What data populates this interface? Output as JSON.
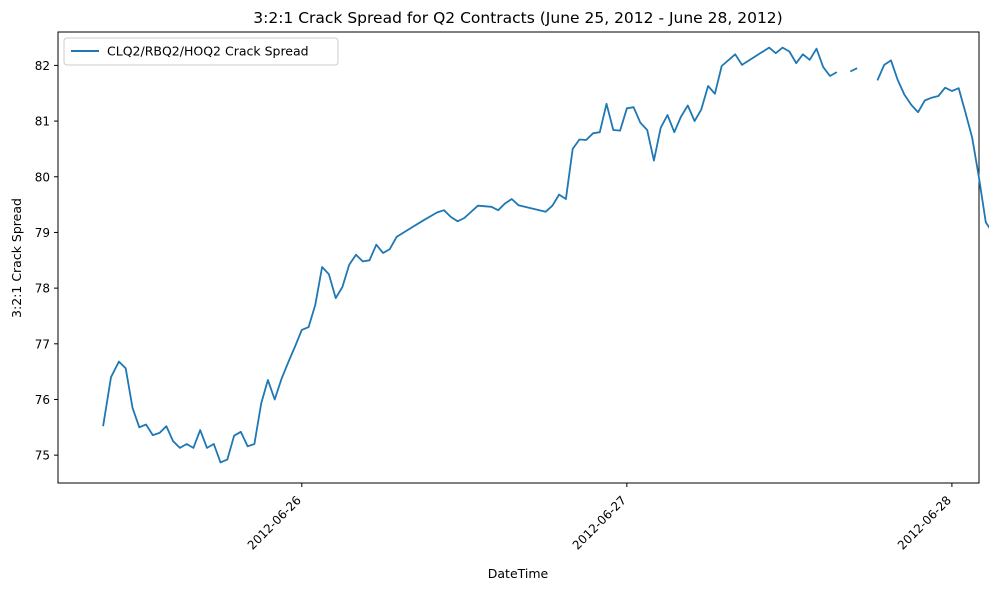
{
  "chart_data": {
    "type": "line",
    "title": "3:2:1 Crack Spread for Q2 Contracts (June 25, 2012 - June 28, 2012)",
    "xlabel": "DateTime",
    "ylabel": "3:2:1 Crack Spread",
    "xlim": [
      "2012-06-25T06:00",
      "2012-06-28T02:00"
    ],
    "ylim": [
      74.5,
      82.6
    ],
    "xticks": [
      "2012-06-26",
      "2012-06-27",
      "2012-06-28"
    ],
    "yticks": [
      75,
      76,
      77,
      78,
      79,
      80,
      81,
      82
    ],
    "grid": false,
    "legend_position": "top-left",
    "series": [
      {
        "name": "CLQ2/RBQ2/HOQ2 Crack Spread",
        "color": "#1f77b4",
        "points": [
          [
            "2012-06-25T09:20",
            75.52
          ],
          [
            "2012-06-25T09:55",
            76.4
          ],
          [
            "2012-06-25T10:30",
            76.68
          ],
          [
            "2012-06-25T11:00",
            76.56
          ],
          [
            "2012-06-25T11:30",
            75.85
          ],
          [
            "2012-06-25T12:00",
            75.5
          ],
          [
            "2012-06-25T12:30",
            75.55
          ],
          [
            "2012-06-25T13:00",
            75.36
          ],
          [
            "2012-06-25T13:30",
            75.4
          ],
          [
            "2012-06-25T14:00",
            75.52
          ],
          [
            "2012-06-25T14:30",
            75.25
          ],
          [
            "2012-06-25T15:00",
            75.13
          ],
          [
            "2012-06-25T15:30",
            75.2
          ],
          [
            "2012-06-25T16:00",
            75.13
          ],
          [
            "2012-06-25T16:30",
            75.45
          ],
          [
            "2012-06-25T17:00",
            75.13
          ],
          [
            "2012-06-25T17:30",
            75.2
          ],
          [
            "2012-06-25T18:00",
            74.87
          ],
          [
            "2012-06-25T18:30",
            74.92
          ],
          [
            "2012-06-25T19:00",
            75.35
          ],
          [
            "2012-06-25T19:30",
            75.42
          ],
          [
            "2012-06-25T20:00",
            75.16
          ],
          [
            "2012-06-25T20:30",
            75.2
          ],
          [
            "2012-06-25T21:00",
            75.93
          ],
          [
            "2012-06-25T21:30",
            76.35
          ],
          [
            "2012-06-25T22:00",
            76.0
          ],
          [
            "2012-06-25T22:30",
            76.37
          ],
          [
            "2012-06-25T23:00",
            76.67
          ],
          [
            "2012-06-25T23:30",
            76.95
          ],
          [
            "2012-06-26T00:00",
            77.25
          ],
          [
            "2012-06-26T00:30",
            77.3
          ],
          [
            "2012-06-26T01:00",
            77.7
          ],
          [
            "2012-06-26T01:30",
            78.38
          ],
          [
            "2012-06-26T02:00",
            78.25
          ],
          [
            "2012-06-26T02:30",
            77.82
          ],
          [
            "2012-06-26T03:00",
            78.02
          ],
          [
            "2012-06-26T03:30",
            78.42
          ],
          [
            "2012-06-26T04:00",
            78.6
          ],
          [
            "2012-06-26T04:30",
            78.48
          ],
          [
            "2012-06-26T05:00",
            78.5
          ],
          [
            "2012-06-26T05:30",
            78.78
          ],
          [
            "2012-06-26T06:00",
            78.63
          ],
          [
            "2012-06-26T06:30",
            78.7
          ],
          [
            "2012-06-26T07:00",
            78.92
          ],
          [
            "2012-06-26T08:00",
            79.07
          ],
          [
            "2012-06-26T09:00",
            79.22
          ],
          [
            "2012-06-26T10:00",
            79.36
          ],
          [
            "2012-06-26T10:30",
            79.4
          ],
          [
            "2012-06-26T11:00",
            79.28
          ],
          [
            "2012-06-26T11:30",
            79.2
          ],
          [
            "2012-06-26T12:00",
            79.26
          ],
          [
            "2012-06-26T13:00",
            79.48
          ],
          [
            "2012-06-26T14:00",
            79.46
          ],
          [
            "2012-06-26T14:30",
            79.4
          ],
          [
            "2012-06-26T15:00",
            79.52
          ],
          [
            "2012-06-26T15:30",
            79.6
          ],
          [
            "2012-06-26T16:00",
            79.49
          ],
          [
            "2012-06-26T18:00",
            79.37
          ],
          [
            "2012-06-26T18:30",
            79.48
          ],
          [
            "2012-06-26T19:00",
            79.68
          ],
          [
            "2012-06-26T19:30",
            79.6
          ],
          [
            "2012-06-26T20:00",
            80.5
          ],
          [
            "2012-06-26T20:30",
            80.67
          ],
          [
            "2012-06-26T21:00",
            80.66
          ],
          [
            "2012-06-26T21:30",
            80.78
          ],
          [
            "2012-06-26T22:00",
            80.8
          ],
          [
            "2012-06-26T22:30",
            81.31
          ],
          [
            "2012-06-26T23:00",
            80.84
          ],
          [
            "2012-06-26T23:30",
            80.83
          ],
          [
            "2012-06-27T00:00",
            81.23
          ],
          [
            "2012-06-27T00:30",
            81.25
          ],
          [
            "2012-06-27T01:00",
            80.97
          ],
          [
            "2012-06-27T01:30",
            80.84
          ],
          [
            "2012-06-27T02:00",
            80.29
          ],
          [
            "2012-06-27T02:30",
            80.88
          ],
          [
            "2012-06-27T03:00",
            81.11
          ],
          [
            "2012-06-27T03:30",
            80.8
          ],
          [
            "2012-06-27T04:00",
            81.08
          ],
          [
            "2012-06-27T04:30",
            81.28
          ],
          [
            "2012-06-27T05:00",
            81.0
          ],
          [
            "2012-06-27T05:30",
            81.21
          ],
          [
            "2012-06-27T06:00",
            81.63
          ],
          [
            "2012-06-27T06:30",
            81.49
          ],
          [
            "2012-06-27T07:00",
            81.99
          ],
          [
            "2012-06-27T08:00",
            82.2
          ],
          [
            "2012-06-27T08:30",
            82.01
          ],
          [
            "2012-06-27T10:30",
            82.32
          ],
          [
            "2012-06-27T11:00",
            82.22
          ],
          [
            "2012-06-27T11:30",
            82.32
          ],
          [
            "2012-06-27T12:00",
            82.25
          ],
          [
            "2012-06-27T12:30",
            82.04
          ],
          [
            "2012-06-27T13:00",
            82.2
          ],
          [
            "2012-06-27T13:30",
            82.1
          ],
          [
            "2012-06-27T14:00",
            82.3
          ],
          [
            "2012-06-27T14:30",
            81.97
          ],
          [
            "2012-06-27T15:00",
            81.81
          ],
          [
            "2012-06-27T15:30",
            81.88
          ],
          null,
          [
            "2012-06-27T16:30",
            81.89
          ],
          [
            "2012-06-27T17:00",
            81.95
          ],
          null,
          [
            "2012-06-27T18:30",
            81.73
          ],
          [
            "2012-06-27T19:00",
            82.01
          ],
          [
            "2012-06-27T19:30",
            82.09
          ],
          [
            "2012-06-27T20:00",
            81.74
          ],
          [
            "2012-06-27T20:30",
            81.47
          ],
          [
            "2012-06-27T21:00",
            81.29
          ],
          [
            "2012-06-27T21:30",
            81.16
          ],
          [
            "2012-06-27T22:00",
            81.37
          ],
          [
            "2012-06-27T22:30",
            81.42
          ],
          [
            "2012-06-27T23:00",
            81.45
          ],
          [
            "2012-06-27T23:30",
            81.6
          ],
          [
            "2012-06-28T00:00",
            81.54
          ],
          [
            "2012-06-28T00:30",
            81.59
          ],
          [
            "2012-06-28T01:00",
            81.15
          ],
          [
            "2012-06-28T01:30",
            80.7
          ],
          [
            "2012-06-28T02:00",
            79.98
          ],
          [
            "2012-06-28T02:30",
            79.18
          ],
          [
            "2012-06-28T03:00",
            79.0
          ]
        ]
      }
    ]
  }
}
